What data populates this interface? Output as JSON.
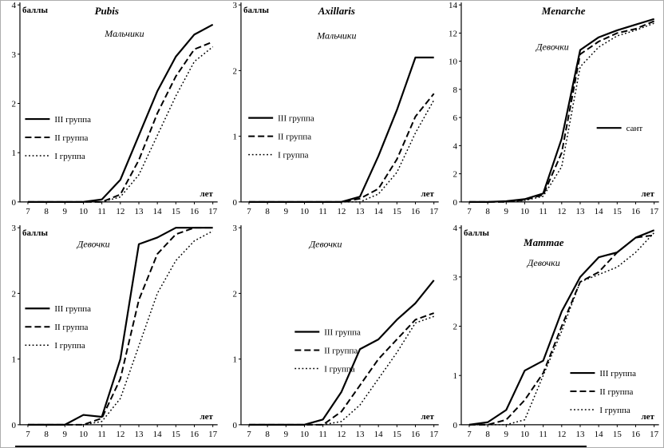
{
  "page": {
    "background": "#ffffff",
    "border_color": "#adadad",
    "line_color": "#000000"
  },
  "chart_data": [
    {
      "type": "line",
      "title": "Pubis",
      "subtitle": "Мальчики",
      "ylabel": "баллы",
      "xlabel": "лет",
      "x": [
        7,
        8,
        9,
        10,
        11,
        12,
        13,
        14,
        15,
        16,
        17
      ],
      "ylim": [
        0,
        4
      ],
      "ytick_step": 1,
      "grid": false,
      "title_xy": [
        0.48,
        0.06
      ],
      "subtitle_xy": [
        0.56,
        0.16
      ],
      "legend": {
        "x": 0.11,
        "y": 0.545,
        "entries": [
          {
            "label": "III группа",
            "style": "solid"
          },
          {
            "label": "II группа",
            "style": "dashed"
          },
          {
            "label": "I группа",
            "style": "dotted"
          }
        ]
      },
      "series": [
        {
          "name": "III группа",
          "style": "solid",
          "values": [
            0,
            0,
            0,
            0,
            0.05,
            0.45,
            1.35,
            2.25,
            2.95,
            3.4,
            3.6
          ]
        },
        {
          "name": "II группа",
          "style": "dashed",
          "values": [
            0,
            0,
            0,
            0,
            0,
            0.15,
            0.85,
            1.8,
            2.55,
            3.1,
            3.25
          ]
        },
        {
          "name": "I группа",
          "style": "dotted",
          "values": [
            0,
            0,
            0,
            0,
            0,
            0.1,
            0.55,
            1.35,
            2.15,
            2.85,
            3.15
          ]
        }
      ]
    },
    {
      "type": "line",
      "title": "Axillaris",
      "subtitle": "Мальчики",
      "ylabel": "баллы",
      "xlabel": "лет",
      "x": [
        7,
        8,
        9,
        10,
        11,
        12,
        13,
        14,
        15,
        16,
        17
      ],
      "ylim": [
        0,
        3
      ],
      "ytick_step": 1,
      "grid": false,
      "title_xy": [
        0.52,
        0.06
      ],
      "subtitle_xy": [
        0.52,
        0.17
      ],
      "legend": {
        "x": 0.12,
        "y": 0.54,
        "entries": [
          {
            "label": "III группа",
            "style": "solid"
          },
          {
            "label": "II группа",
            "style": "dashed"
          },
          {
            "label": "I группа",
            "style": "dotted"
          }
        ]
      },
      "series": [
        {
          "name": "III группа",
          "style": "solid",
          "values": [
            0,
            0,
            0,
            0,
            0,
            0,
            0.08,
            0.7,
            1.4,
            2.2,
            2.2
          ]
        },
        {
          "name": "II группа",
          "style": "dashed",
          "values": [
            0,
            0,
            0,
            0,
            0,
            0,
            0.05,
            0.2,
            0.65,
            1.3,
            1.65
          ]
        },
        {
          "name": "I группа",
          "style": "dotted",
          "values": [
            0,
            0,
            0,
            0,
            0,
            0,
            0,
            0.12,
            0.45,
            1.05,
            1.55
          ]
        }
      ]
    },
    {
      "type": "line",
      "title": "Menarche",
      "subtitle": "Девочки",
      "ylabel": "",
      "xlabel": "лет",
      "x": [
        7,
        8,
        9,
        10,
        11,
        12,
        13,
        14,
        15,
        16,
        17
      ],
      "ylim": [
        0,
        14
      ],
      "ytick_step": 2,
      "grid": false,
      "title_xy": [
        0.55,
        0.06
      ],
      "subtitle_xy": [
        0.5,
        0.22
      ],
      "legend": {
        "x": 0.7,
        "y": 0.585,
        "entries": [
          {
            "label": "сант",
            "style": "solid"
          }
        ]
      },
      "series": [
        {
          "name": "line-solid",
          "style": "solid",
          "values": [
            0,
            0,
            0.05,
            0.2,
            0.6,
            4.5,
            10.8,
            11.7,
            12.2,
            12.6,
            13.0
          ]
        },
        {
          "name": "line-dashed",
          "style": "dashed",
          "values": [
            0,
            0,
            0,
            0.15,
            0.5,
            3.5,
            10.5,
            11.4,
            12.0,
            12.3,
            12.85
          ]
        },
        {
          "name": "line-dotted",
          "style": "dotted",
          "values": [
            0,
            0,
            0,
            0.1,
            0.4,
            2.5,
            9.6,
            11.0,
            11.8,
            12.2,
            12.7
          ]
        }
      ]
    },
    {
      "type": "line",
      "title": "",
      "subtitle": "Девочки",
      "ylabel": "баллы",
      "xlabel": "лет",
      "x": [
        7,
        8,
        9,
        10,
        11,
        12,
        13,
        14,
        15,
        16,
        17
      ],
      "ylim": [
        0,
        3
      ],
      "ytick_step": 1,
      "grid": false,
      "title_xy": [
        0.42,
        0.05
      ],
      "subtitle_xy": [
        0.42,
        0.105
      ],
      "legend": {
        "x": 0.11,
        "y": 0.395,
        "entries": [
          {
            "label": "III группа",
            "style": "solid"
          },
          {
            "label": "II группа",
            "style": "dashed"
          },
          {
            "label": "I группа",
            "style": "dotted"
          }
        ]
      },
      "series": [
        {
          "name": "III группа",
          "style": "solid",
          "values": [
            0,
            0,
            0,
            0.15,
            0.12,
            1.0,
            2.75,
            2.85,
            3.0,
            3.0,
            3.0
          ]
        },
        {
          "name": "II группа",
          "style": "dashed",
          "values": [
            0,
            0,
            0,
            0,
            0.1,
            0.7,
            1.9,
            2.6,
            2.9,
            3.0,
            3.0
          ]
        },
        {
          "name": "I группа",
          "style": "dotted",
          "values": [
            0,
            0,
            0,
            0,
            0.05,
            0.4,
            1.2,
            2.0,
            2.5,
            2.8,
            2.95
          ]
        }
      ]
    },
    {
      "type": "line",
      "title": "",
      "subtitle": "Девочки",
      "ylabel": "",
      "xlabel": "лет",
      "x": [
        7,
        8,
        9,
        10,
        11,
        12,
        13,
        14,
        15,
        16,
        17
      ],
      "ylim": [
        0,
        3
      ],
      "ytick_step": 1,
      "grid": false,
      "title_xy": [
        0.47,
        0.05
      ],
      "subtitle_xy": [
        0.47,
        0.105
      ],
      "legend": {
        "x": 0.33,
        "y": 0.5,
        "entries": [
          {
            "label": "III группа",
            "style": "solid"
          },
          {
            "label": "II группа",
            "style": "dashed"
          },
          {
            "label": "I группа",
            "style": "dotted"
          }
        ]
      },
      "series": [
        {
          "name": "III группа",
          "style": "solid",
          "values": [
            0,
            0,
            0,
            0,
            0.08,
            0.5,
            1.15,
            1.3,
            1.6,
            1.85,
            2.2
          ]
        },
        {
          "name": "II группа",
          "style": "dashed",
          "values": [
            0,
            0,
            0,
            0,
            0,
            0.2,
            0.6,
            1.0,
            1.3,
            1.6,
            1.7
          ]
        },
        {
          "name": "I группа",
          "style": "dotted",
          "values": [
            0,
            0,
            0,
            0,
            0,
            0.05,
            0.3,
            0.7,
            1.1,
            1.55,
            1.65
          ]
        }
      ]
    },
    {
      "type": "line",
      "title": "Mammae",
      "subtitle": "Девочки",
      "ylabel": "баллы",
      "xlabel": "лет",
      "x": [
        7,
        8,
        9,
        10,
        11,
        12,
        13,
        14,
        15,
        16,
        17
      ],
      "ylim": [
        0,
        4
      ],
      "ytick_step": 1,
      "grid": false,
      "title_xy": [
        0.46,
        0.1
      ],
      "subtitle_xy": [
        0.46,
        0.19
      ],
      "legend": {
        "x": 0.58,
        "y": 0.685,
        "entries": [
          {
            "label": "III группа",
            "style": "solid"
          },
          {
            "label": "II группа",
            "style": "dashed"
          },
          {
            "label": "I группа",
            "style": "dotted"
          }
        ]
      },
      "series": [
        {
          "name": "III группа",
          "style": "solid",
          "values": [
            0,
            0.05,
            0.3,
            1.1,
            1.3,
            2.3,
            3.0,
            3.4,
            3.5,
            3.8,
            3.95
          ]
        },
        {
          "name": "II группа",
          "style": "dashed",
          "values": [
            0,
            0,
            0.1,
            0.5,
            1.05,
            2.0,
            2.9,
            3.1,
            3.5,
            3.8,
            3.85
          ]
        },
        {
          "name": "I группа",
          "style": "dotted",
          "values": [
            0,
            0,
            0,
            0.1,
            1.0,
            1.9,
            2.9,
            3.05,
            3.2,
            3.5,
            3.9
          ]
        }
      ]
    }
  ]
}
